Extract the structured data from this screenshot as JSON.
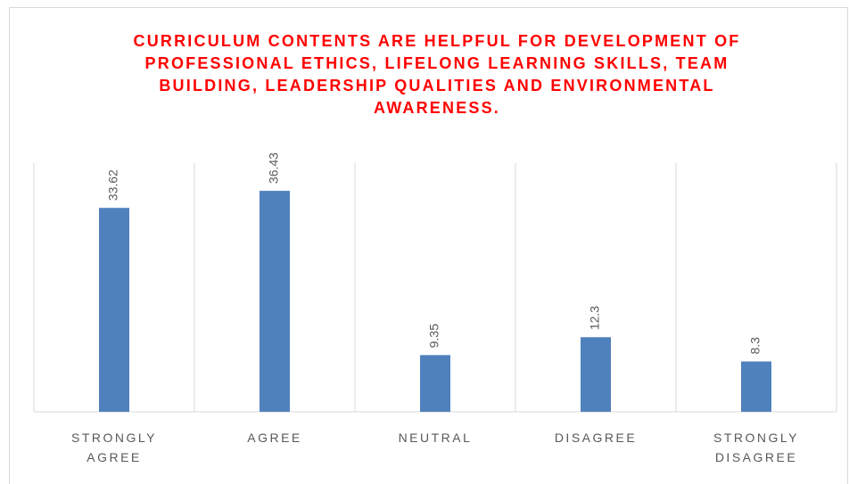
{
  "chart_data": {
    "type": "bar",
    "title": "CURRICULUM CONTENTS ARE HELPFUL FOR DEVELOPMENT OF PROFESSIONAL ETHICS, LIFELONG LEARNING SKILLS, TEAM BUILDING, LEADERSHIP QUALITIES AND ENVIRONMENTAL AWARENESS.",
    "categories": [
      "STRONGLY AGREE",
      "AGREE",
      "NEUTRAL",
      "DISAGREE",
      "STRONGLY DISAGREE"
    ],
    "values": [
      33.62,
      36.43,
      9.35,
      12.3,
      8.3
    ],
    "color": "#4f81bd",
    "ylim": [
      0,
      41
    ]
  }
}
